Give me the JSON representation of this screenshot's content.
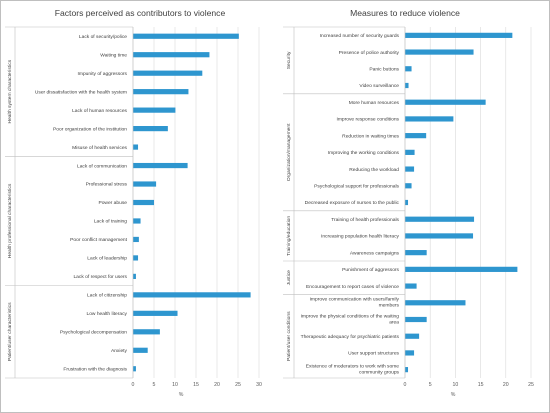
{
  "chart_data": [
    {
      "type": "bar",
      "orientation": "horizontal",
      "title": "Factors perceived as contributors to violence",
      "xlabel": "%",
      "xlim": [
        0,
        30
      ],
      "xticks": [
        0,
        5,
        10,
        15,
        20,
        25,
        30
      ],
      "grid": true,
      "groups": [
        {
          "name": "Health system characteristics",
          "categories": [
            "Lack of security/police",
            "Waiting time",
            "Impunity of aggressors",
            "User dissatisfaction with the health system",
            "Lack of human resources",
            "Poor organization of the institution",
            "Misuse of health services"
          ],
          "values": [
            25.2,
            18.2,
            16.5,
            13.2,
            10.1,
            8.3,
            1.2
          ]
        },
        {
          "name": "Health professional characteristics",
          "categories": [
            "Lack of communication",
            "Professional stress",
            "Power abuse",
            "Lack of training",
            "Poor conflict management",
            "Lack of leadership",
            "Lack of respect for users"
          ],
          "values": [
            13.0,
            5.5,
            5.0,
            1.8,
            1.4,
            1.2,
            0.7
          ]
        },
        {
          "name": "Patient/user characteristics",
          "categories": [
            "Lack of citizenship",
            "Low health literacy",
            "Psychological decompensation",
            "Anxiety",
            "Frustration with the diagnosis"
          ],
          "values": [
            28.0,
            10.6,
            6.4,
            3.5,
            0.7
          ]
        }
      ]
    },
    {
      "type": "bar",
      "orientation": "horizontal",
      "title": "Measures to reduce violence",
      "xlabel": "%",
      "xlim": [
        0,
        25
      ],
      "xticks": [
        0,
        5,
        10,
        15,
        20,
        25
      ],
      "grid": true,
      "groups": [
        {
          "name": "Security",
          "categories": [
            "Increased number of security guards",
            "Presence of police authority",
            "Panic buttons",
            "Video surveillance"
          ],
          "values": [
            21.3,
            13.6,
            1.3,
            0.7
          ]
        },
        {
          "name": "Organization/management",
          "categories": [
            "More human resources",
            "Improve response conditions",
            "Reduction in waiting times",
            "Improving the working conditions",
            "Reducing the workload",
            "Psychological support for professionals",
            "Decreased exposure of nurses to the public"
          ],
          "values": [
            16.0,
            9.6,
            4.2,
            1.9,
            1.8,
            1.3,
            0.6
          ]
        },
        {
          "name": "Training/education",
          "categories": [
            "Training of health professionals",
            "Increasing population health literacy",
            "Awareness campaigns"
          ],
          "values": [
            13.7,
            13.5,
            4.3
          ]
        },
        {
          "name": "Justice",
          "categories": [
            "Punishment of aggressors",
            "Encouragement to report cases of violence"
          ],
          "values": [
            22.3,
            2.3
          ]
        },
        {
          "name": "Patient/user conditions",
          "categories": [
            "Improve communication with users/family members",
            "Improve the physical conditions of the waiting area",
            "Therapeutic adequacy for psychiatric patients",
            "User support structures",
            "Existence of moderators to work with some community groups"
          ],
          "values": [
            12.0,
            4.3,
            2.8,
            1.8,
            0.6
          ]
        }
      ]
    }
  ]
}
